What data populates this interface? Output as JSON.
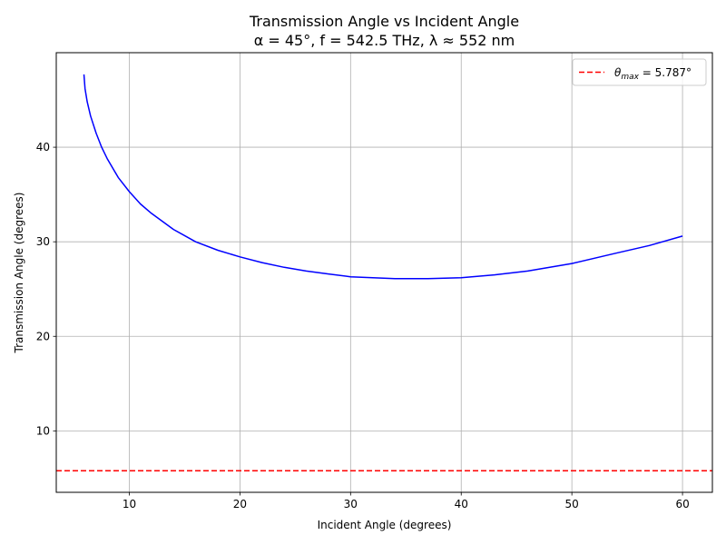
{
  "chart_data": {
    "type": "line",
    "title": "Transmission Angle vs Incident Angle",
    "subtitle": "α = 45°, f = 542.5 THz, λ ≈ 552 nm",
    "xlabel": "Incident Angle (degrees)",
    "ylabel": "Transmission Angle (degrees)",
    "xlim": [
      3.4,
      62.7
    ],
    "ylim": [
      3.5,
      50
    ],
    "xticks": [
      10,
      20,
      30,
      40,
      50,
      60
    ],
    "yticks": [
      10,
      20,
      30,
      40
    ],
    "grid": true,
    "legend_position": "top-right",
    "series": [
      {
        "color": "#0000ff",
        "style": "solid",
        "x": [
          5.9,
          6.0,
          6.2,
          6.5,
          7.0,
          7.5,
          8.0,
          9.0,
          10.0,
          11.0,
          12.0,
          14.0,
          16.0,
          18.0,
          20.0,
          22.0,
          24.0,
          26.0,
          28.0,
          30.0,
          32.0,
          34.0,
          35.5,
          37.0,
          40.0,
          43.0,
          46.0,
          50.0,
          54.0,
          57.0,
          60.0
        ],
        "y": [
          47.7,
          46.2,
          44.8,
          43.3,
          41.5,
          40.0,
          38.8,
          36.8,
          35.3,
          34.0,
          33.0,
          31.3,
          30.0,
          29.1,
          28.4,
          27.8,
          27.3,
          26.9,
          26.6,
          26.3,
          26.2,
          26.1,
          26.1,
          26.1,
          26.2,
          26.5,
          26.9,
          27.7,
          28.8,
          29.6,
          30.6
        ]
      },
      {
        "name_label": "θmax = 5.787°",
        "name_symbol": "θ",
        "name_sub": "max",
        "name_rest": " = 5.787°",
        "color": "#ff0000",
        "style": "dashed",
        "y_constant": 5.787
      }
    ]
  }
}
